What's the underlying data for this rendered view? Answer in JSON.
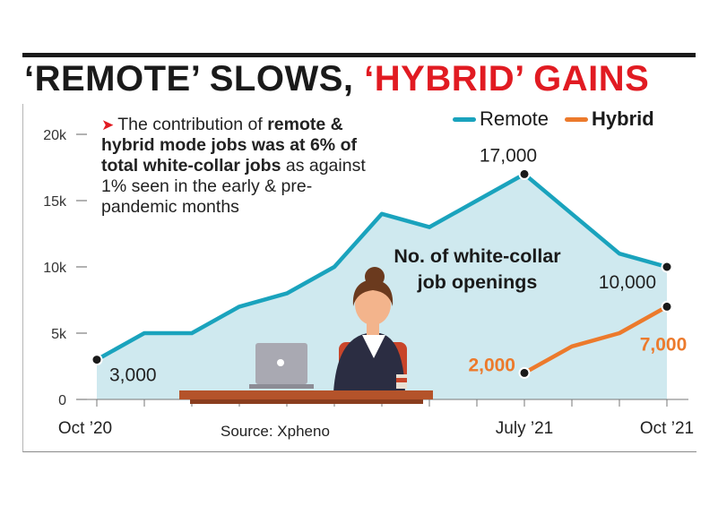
{
  "headline": {
    "part1": "‘REMOTE’ SLOWS, ",
    "part2": "‘HYBRID’ GAINS"
  },
  "note": {
    "pre": "The contribution of ",
    "bold1": "remote & hybrid mode jobs was at 6% of total white-collar jobs",
    "post": " as against 1% seen in the early & pre-pandemic months"
  },
  "center_label": {
    "line1": "No. of white-collar",
    "line2": "job openings"
  },
  "source": "Source: Xpheno",
  "colors": {
    "remote": "#1aa3bd",
    "remote_fill": "#cfe9ef",
    "hybrid": "#ec7a2c",
    "accent_red": "#e11b22",
    "ink": "#1a1a1a"
  },
  "chart_data": {
    "type": "line",
    "x": [
      "Oct '20",
      "",
      "",
      "",
      "",
      "",
      "",
      "",
      "",
      "July '21",
      "",
      "",
      "Oct '21"
    ],
    "x_tick_labels": [
      "Oct ’20",
      "July ’21",
      "Oct ’21"
    ],
    "y_ticks": [
      "0",
      "5k",
      "10k",
      "15k",
      "20k"
    ],
    "ylim": [
      0,
      20000
    ],
    "series": [
      {
        "name": "Remote",
        "values": [
          3000,
          5000,
          5000,
          7000,
          8000,
          10000,
          14000,
          13000,
          15000,
          17000,
          14000,
          11000,
          10000
        ],
        "area": true
      },
      {
        "name": "Hybrid",
        "values": [
          null,
          null,
          null,
          null,
          null,
          null,
          null,
          null,
          null,
          2000,
          4000,
          5000,
          7000
        ]
      }
    ],
    "data_labels": [
      {
        "series": "Remote",
        "index": 0,
        "text": "3,000"
      },
      {
        "series": "Remote",
        "index": 9,
        "text": "17,000"
      },
      {
        "series": "Remote",
        "index": 12,
        "text": "10,000"
      },
      {
        "series": "Hybrid",
        "index": 9,
        "text": "2,000"
      },
      {
        "series": "Hybrid",
        "index": 12,
        "text": "7,000"
      }
    ],
    "legend": [
      "Remote",
      "Hybrid"
    ],
    "legend_position": "top-right",
    "grid": false
  },
  "illustration": {
    "subject": "woman working at laptop desk",
    "icons": [
      "person-icon",
      "laptop-icon",
      "coffee-cup-icon"
    ]
  }
}
